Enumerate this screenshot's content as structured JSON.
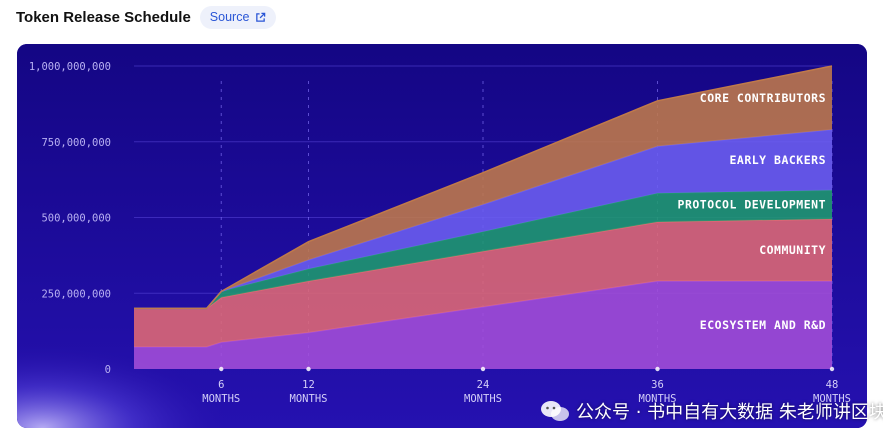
{
  "header": {
    "title": "Token Release Schedule",
    "source_label": "Source",
    "source_icon": "external-link-icon"
  },
  "colors": {
    "background": "#1a0794",
    "core_contributors": "#c07a4a",
    "early_backers": "#6c5ff0",
    "protocol_development": "#1f9b6e",
    "community": "#e06a74",
    "ecosystem": "#a44fd8"
  },
  "chart_data": {
    "type": "area",
    "stacked": true,
    "x": [
      0,
      5,
      6,
      12,
      24,
      36,
      48
    ],
    "xticks": [
      {
        "value": 6,
        "label": [
          "6",
          "MONTHS"
        ]
      },
      {
        "value": 12,
        "label": [
          "12",
          "MONTHS"
        ]
      },
      {
        "value": 24,
        "label": [
          "24",
          "MONTHS"
        ]
      },
      {
        "value": 36,
        "label": [
          "36",
          "MONTHS"
        ]
      },
      {
        "value": 48,
        "label": [
          "48",
          "MONTHS"
        ]
      }
    ],
    "yticks": [
      "0",
      "250,000,000",
      "500,000,000",
      "750,000,000",
      "1,000,000,000"
    ],
    "ylim": [
      0,
      1000000000
    ],
    "xlim": [
      0,
      48
    ],
    "grid": true,
    "legend_placement": "inline-right",
    "series": [
      {
        "name": "ECOSYSTEM AND R&D",
        "color": "#a44fd8",
        "points": [
          [
            0,
            73000000
          ],
          [
            5,
            73000000
          ],
          [
            6,
            88000000
          ],
          [
            12,
            120000000
          ],
          [
            24,
            205000000
          ],
          [
            36,
            290000000
          ],
          [
            48,
            290000000
          ]
        ]
      },
      {
        "name": "COMMUNITY",
        "color": "#e06a74",
        "points": [
          [
            0,
            127000000
          ],
          [
            5,
            127000000
          ],
          [
            6,
            148000000
          ],
          [
            12,
            170000000
          ],
          [
            24,
            183000000
          ],
          [
            36,
            195000000
          ],
          [
            48,
            205000000
          ]
        ]
      },
      {
        "name": "PROTOCOL DEVELOPMENT",
        "color": "#1f9b6e",
        "points": [
          [
            0,
            0
          ],
          [
            5,
            0
          ],
          [
            6,
            20000000
          ],
          [
            12,
            40000000
          ],
          [
            24,
            65000000
          ],
          [
            36,
            95000000
          ],
          [
            48,
            95000000
          ]
        ]
      },
      {
        "name": "EARLY BACKERS",
        "color": "#6c5ff0",
        "points": [
          [
            0,
            0
          ],
          [
            5,
            0
          ],
          [
            6,
            0
          ],
          [
            12,
            30000000
          ],
          [
            24,
            90000000
          ],
          [
            36,
            155000000
          ],
          [
            48,
            200000000
          ]
        ]
      },
      {
        "name": "CORE CONTRIBUTORS",
        "color": "#c07a4a",
        "points": [
          [
            0,
            0
          ],
          [
            5,
            0
          ],
          [
            6,
            0
          ],
          [
            12,
            60000000
          ],
          [
            24,
            105000000
          ],
          [
            36,
            150000000
          ],
          [
            48,
            210000000
          ]
        ]
      }
    ]
  },
  "watermark": {
    "text": "公众号 · 书中自有大数据 朱老师讲区块链"
  }
}
